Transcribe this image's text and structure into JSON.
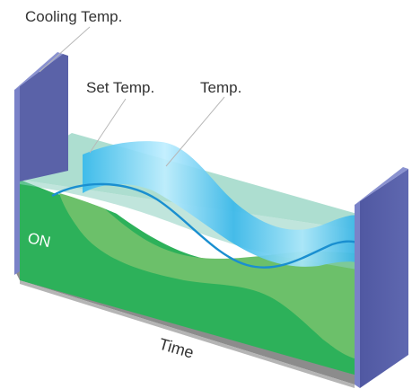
{
  "labels": {
    "cooling_temp": "Cooling Temp.",
    "set_temp": "Set Temp.",
    "temp": "Temp.",
    "on": "ON",
    "time": "Time"
  },
  "colors": {
    "wall": "#5a62a8",
    "wall_edge": "#7a82c8",
    "base": "#8f8f8f",
    "on_region": "#2db15a",
    "light_green": "#6cc06a",
    "set_plane": "#9fd8c8",
    "temp_wave": "#4fc6ee",
    "temp_line": "#1a8fd0"
  }
}
